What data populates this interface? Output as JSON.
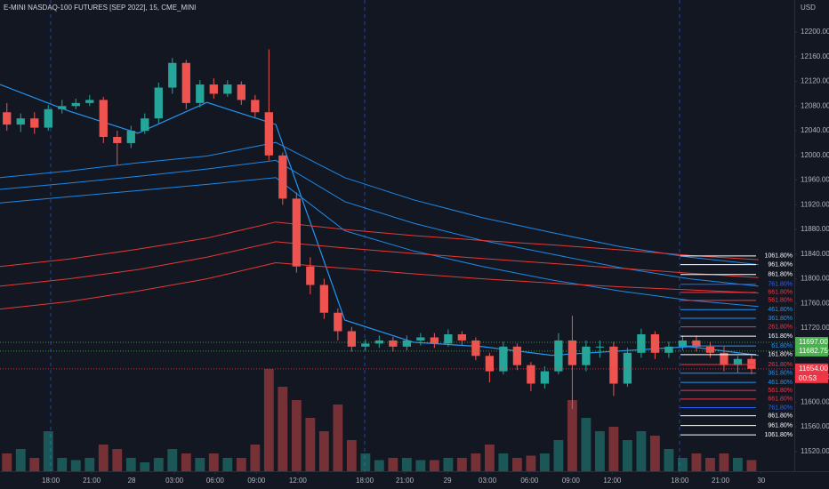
{
  "chart_data": {
    "type": "candlestick",
    "title": "E-MINI NASDAQ-100 FUTURES [SEP 2022], 15, CME_MINI",
    "currency": "USD",
    "up_color": "#26a69a",
    "down_color": "#ef5350",
    "xlim": [
      0,
      57.6
    ],
    "ylim": [
      11488,
      12252
    ],
    "volume_ylim": [
      0,
      40000
    ],
    "grid": false,
    "xticks": [
      {
        "value": 3.68,
        "label": "18:00"
      },
      {
        "value": 6.65,
        "label": "21:00"
      },
      {
        "value": 9.55,
        "label": "28"
      },
      {
        "value": 12.65,
        "label": "03:00"
      },
      {
        "value": 15.6,
        "label": "06:00"
      },
      {
        "value": 18.6,
        "label": "09:00"
      },
      {
        "value": 21.6,
        "label": "12:00"
      },
      {
        "value": 26.45,
        "label": "18:00"
      },
      {
        "value": 29.35,
        "label": "21:00"
      },
      {
        "value": 32.45,
        "label": "29"
      },
      {
        "value": 35.35,
        "label": "03:00"
      },
      {
        "value": 38.4,
        "label": "06:00"
      },
      {
        "value": 41.4,
        "label": "09:00"
      },
      {
        "value": 44.4,
        "label": "12:00"
      },
      {
        "value": 49.3,
        "label": "18:00"
      },
      {
        "value": 52.25,
        "label": "21:00"
      },
      {
        "value": 55.2,
        "label": "30"
      }
    ],
    "yticks": [
      {
        "value": 12200,
        "label": "12200.00"
      },
      {
        "value": 12160,
        "label": "12160.00"
      },
      {
        "value": 12120,
        "label": "12120.00"
      },
      {
        "value": 12080,
        "label": "12080.00"
      },
      {
        "value": 12040,
        "label": "12040.00"
      },
      {
        "value": 12000,
        "label": "12000.00"
      },
      {
        "value": 11960,
        "label": "11960.00"
      },
      {
        "value": 11920,
        "label": "11920.00"
      },
      {
        "value": 11880,
        "label": "11880.00"
      },
      {
        "value": 11840,
        "label": "11840.00"
      },
      {
        "value": 11800,
        "label": "11800.00"
      },
      {
        "value": 11760,
        "label": "11760.00"
      },
      {
        "value": 11720,
        "label": "11720.00"
      },
      {
        "value": 11680,
        "label": "11680.00"
      },
      {
        "value": 11640,
        "label": "11640.00"
      },
      {
        "value": 11600,
        "label": "11600.00"
      },
      {
        "value": 11560,
        "label": "11560.00"
      },
      {
        "value": 11520,
        "label": "11520.00"
      }
    ],
    "x": [
      0.5,
      1.5,
      2.5,
      3.5,
      4.5,
      5.5,
      6.5,
      7.5,
      8.5,
      9.5,
      10.5,
      11.5,
      12.5,
      13.5,
      14.5,
      15.5,
      16.5,
      17.5,
      18.5,
      19.5,
      20.5,
      21.5,
      22.5,
      23.5,
      24.5,
      25.5,
      26.5,
      27.5,
      28.5,
      29.5,
      30.5,
      31.5,
      32.5,
      33.5,
      34.5,
      35.5,
      36.5,
      37.5,
      38.5,
      39.5,
      40.5,
      41.5,
      42.5,
      43.5,
      44.5,
      45.5,
      46.5,
      47.5,
      48.5,
      49.5,
      50.5,
      51.5,
      52.5,
      53.5,
      54.5
    ],
    "open": [
      12070,
      12050,
      12060,
      12045,
      12075,
      12080,
      12085,
      12090,
      12030,
      12020,
      12040,
      12060,
      12110,
      12150,
      12085,
      12115,
      12100,
      12115,
      12090,
      12070,
      12000,
      11930,
      11820,
      11790,
      11745,
      11715,
      11690,
      11695,
      11700,
      11690,
      11700,
      11705,
      11695,
      11710,
      11700,
      11675,
      11650,
      11690,
      11660,
      11630,
      11650,
      11700,
      11660,
      11690,
      11690,
      11630,
      11680,
      11710,
      11680,
      11690,
      11700,
      11690,
      11680,
      11660,
      11670
    ],
    "high": [
      12085,
      12068,
      12070,
      12082,
      12090,
      12092,
      12098,
      12095,
      12040,
      12048,
      12068,
      12118,
      12158,
      12155,
      12122,
      12125,
      12122,
      12120,
      12098,
      12172,
      12005,
      11940,
      11835,
      11800,
      11752,
      11722,
      11702,
      11708,
      11706,
      11708,
      11712,
      11712,
      11718,
      11715,
      11705,
      11680,
      11698,
      11695,
      11665,
      11658,
      11712,
      11740,
      11700,
      11700,
      11698,
      11688,
      11719,
      11715,
      11698,
      11708,
      11708,
      11698,
      11690,
      11675,
      11676
    ],
    "low": [
      12040,
      12038,
      12035,
      12040,
      12068,
      12075,
      12080,
      12020,
      11985,
      12012,
      12035,
      12052,
      12100,
      12075,
      12078,
      12092,
      12095,
      12082,
      12062,
      11992,
      11920,
      11810,
      11775,
      11735,
      11700,
      11682,
      11684,
      11688,
      11682,
      11684,
      11692,
      11688,
      11690,
      11692,
      11668,
      11632,
      11645,
      11652,
      11618,
      11622,
      11645,
      11589,
      11650,
      11672,
      11610,
      11625,
      11672,
      11670,
      11672,
      11684,
      11682,
      11672,
      11650,
      11648,
      11645
    ],
    "close": [
      12050,
      12060,
      12045,
      12075,
      12080,
      12085,
      12090,
      12030,
      12020,
      12040,
      12060,
      12110,
      12150,
      12085,
      12115,
      12100,
      12115,
      12090,
      12070,
      12000,
      11930,
      11820,
      11790,
      11745,
      11715,
      11690,
      11695,
      11700,
      11690,
      11700,
      11705,
      11695,
      11710,
      11700,
      11675,
      11650,
      11690,
      11660,
      11630,
      11650,
      11700,
      11660,
      11690,
      11690,
      11630,
      11680,
      11710,
      11680,
      11690,
      11700,
      11690,
      11680,
      11660,
      11670,
      11654
    ],
    "volume": [
      4000,
      5000,
      3000,
      9000,
      3000,
      2500,
      3000,
      6000,
      5000,
      3000,
      2000,
      3000,
      5000,
      4000,
      3000,
      4000,
      3000,
      3000,
      6000,
      23000,
      19000,
      16000,
      12000,
      9000,
      15000,
      7000,
      4000,
      2500,
      3000,
      3000,
      2500,
      2500,
      3000,
      3000,
      4000,
      6000,
      4000,
      3000,
      3500,
      4000,
      7000,
      16000,
      12000,
      9000,
      10000,
      7000,
      9000,
      8000,
      5000,
      3000,
      4000,
      3000,
      4000,
      3000,
      2500
    ],
    "ma_x": [
      0,
      5,
      10,
      15,
      20,
      25,
      30,
      35,
      40,
      45,
      50,
      55
    ],
    "moving_averages": [
      {
        "color": "#2196f3",
        "values": [
          12115,
          12072,
          12036,
          12086,
          12050,
          11733,
          11697,
          11690,
          11676,
          11683,
          11690,
          11676
        ]
      },
      {
        "color": "#1e88e5",
        "values": [
          11964,
          11975,
          11988,
          11999,
          12021,
          11964,
          11928,
          11899,
          11875,
          11852,
          11835,
          11823
        ]
      },
      {
        "color": "#1e88e5",
        "values": [
          11945,
          11955,
          11966,
          11978,
          11992,
          11925,
          11890,
          11862,
          11840,
          11818,
          11800,
          11788
        ]
      },
      {
        "color": "#1e88e5",
        "values": [
          11923,
          11933,
          11943,
          11953,
          11964,
          11878,
          11845,
          11820,
          11798,
          11780,
          11765,
          11755
        ]
      },
      {
        "color": "#e53935",
        "values": [
          11820,
          11832,
          11848,
          11866,
          11892,
          11880,
          11870,
          11862,
          11855,
          11847,
          11838,
          11831
        ]
      },
      {
        "color": "#e53935",
        "values": [
          11788,
          11800,
          11815,
          11835,
          11860,
          11850,
          11841,
          11833,
          11825,
          11817,
          11809,
          11802
        ]
      },
      {
        "color": "#e53935",
        "values": [
          11751,
          11763,
          11780,
          11800,
          11826,
          11817,
          11808,
          11800,
          11793,
          11787,
          11782,
          11777
        ]
      }
    ],
    "fib_levels": [
      {
        "label": "1061.80%",
        "value": 11837,
        "color": "#ffffff"
      },
      {
        "label": "961.80%",
        "value": 11823,
        "color": "#ffffff"
      },
      {
        "label": "861.80%",
        "value": 11807,
        "color": "#ffffff"
      },
      {
        "label": "761.80%",
        "value": 11791,
        "color": "#2962ff"
      },
      {
        "label": "661.80%",
        "value": 11778,
        "color": "#f23645"
      },
      {
        "label": "561.80%",
        "value": 11765,
        "color": "#f23645"
      },
      {
        "label": "461.80%",
        "value": 11750,
        "color": "#2196f3"
      },
      {
        "label": "361.80%",
        "value": 11736,
        "color": "#2196f3"
      },
      {
        "label": "261.80%",
        "value": 11722,
        "color": "#f23645"
      },
      {
        "label": "161.80%",
        "value": 11707,
        "color": "#ffffff"
      },
      {
        "label": "61.80%",
        "value": 11691,
        "color": "#2196f3"
      },
      {
        "label": "161.80%",
        "value": 11677,
        "color": "#ffffff"
      },
      {
        "label": "261.80%",
        "value": 11661,
        "color": "#f23645"
      },
      {
        "label": "361.80%",
        "value": 11647,
        "color": "#2196f3"
      },
      {
        "label": "461.80%",
        "value": 11632,
        "color": "#2196f3"
      },
      {
        "label": "561.80%",
        "value": 11619,
        "color": "#f23645"
      },
      {
        "label": "661.80%",
        "value": 11605,
        "color": "#f23645"
      },
      {
        "label": "761.80%",
        "value": 11591,
        "color": "#2962ff"
      },
      {
        "label": "861.80%",
        "value": 11578,
        "color": "#ffffff"
      },
      {
        "label": "961.80%",
        "value": 11562,
        "color": "#ffffff"
      },
      {
        "label": "1061.80%",
        "value": 11547,
        "color": "#ffffff"
      }
    ],
    "price_tags": [
      {
        "value": 11697,
        "label": "11697.00",
        "color": "#4caf50"
      },
      {
        "value": 11682.75,
        "label": "11682.75",
        "color": "#4caf50"
      },
      {
        "value": 11654,
        "label": "11654.00",
        "color": "#f23645"
      }
    ],
    "countdown": "00:53"
  }
}
